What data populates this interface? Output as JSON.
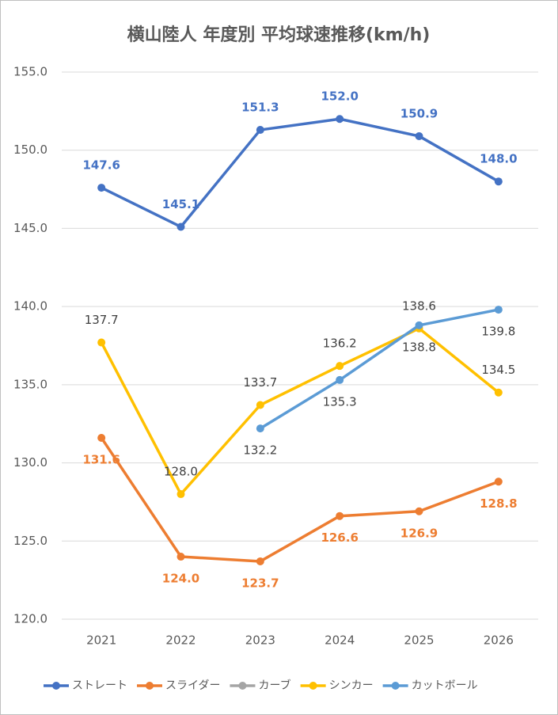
{
  "chart_data": {
    "type": "line",
    "title": "横山陸人 年度別 平均球速推移(km/h)",
    "categories": [
      "2021",
      "2022",
      "2023",
      "2024",
      "2025",
      "2026"
    ],
    "ylim": [
      120,
      155
    ],
    "yticks": [
      {
        "value": 120,
        "label": "120.0"
      },
      {
        "value": 125,
        "label": "125.0"
      },
      {
        "value": 130,
        "label": "130.0"
      },
      {
        "value": 135,
        "label": "135.0"
      },
      {
        "value": 140,
        "label": "140.0"
      },
      {
        "value": 145,
        "label": "145.0"
      },
      {
        "value": 150,
        "label": "150.0"
      },
      {
        "value": 155,
        "label": "155.0"
      }
    ],
    "grid": true,
    "legend": "bottom",
    "series": [
      {
        "name": "ストレート",
        "color": "#4472c4",
        "label_color": "#4472c4",
        "values": [
          147.6,
          145.1,
          151.3,
          152,
          150.9,
          148
        ],
        "value_labels": [
          "147.6",
          "145.1",
          "151.3",
          "152.0",
          "150.9",
          "148.0"
        ]
      },
      {
        "name": "スライダー",
        "color": "#ed7d31",
        "label_color": "#ed7d31",
        "values": [
          131.6,
          124,
          123.7,
          126.6,
          126.9,
          128.8
        ],
        "value_labels": [
          "131.6",
          "124.0",
          "123.7",
          "126.6",
          "126.9",
          "128.8"
        ]
      },
      {
        "name": "カーブ",
        "color": "#a5a5a5",
        "label_color": "#404040",
        "values": [
          null,
          null,
          null,
          null,
          null,
          null
        ],
        "value_labels": [
          null,
          null,
          null,
          null,
          null,
          null
        ]
      },
      {
        "name": "シンカー",
        "color": "#ffc000",
        "label_color": "#404040",
        "values": [
          137.7,
          128,
          133.7,
          136.2,
          138.6,
          134.5
        ],
        "value_labels": [
          "137.7",
          "128.0",
          "133.7",
          "136.2",
          "138.6",
          "134.5"
        ]
      },
      {
        "name": "カットボール",
        "color": "#5b9bd5",
        "label_color": "#404040",
        "values": [
          null,
          null,
          132.2,
          135.3,
          138.8,
          139.8
        ],
        "value_labels": [
          null,
          null,
          "132.2",
          "135.3",
          "138.8",
          "139.8"
        ]
      }
    ]
  }
}
